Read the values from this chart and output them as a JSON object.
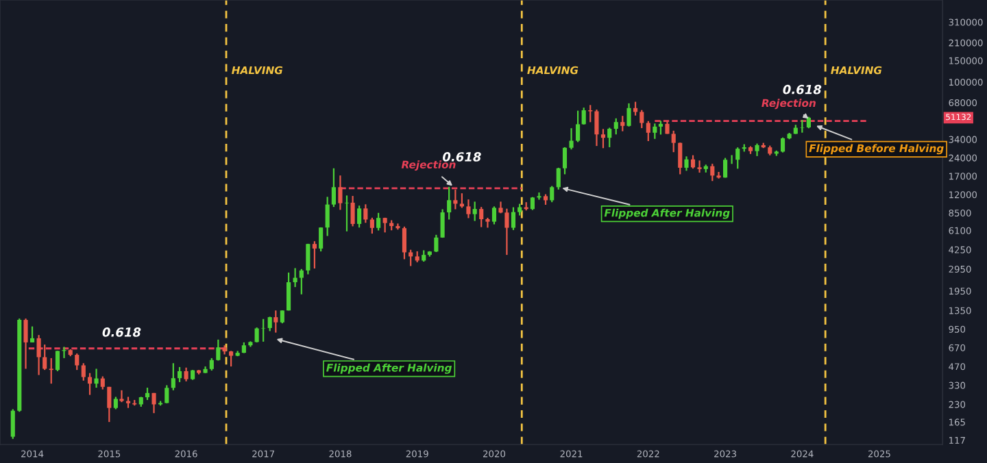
{
  "chart_data": {
    "type": "candlestick",
    "x": [
      "2013-10",
      "2013-11",
      "2013-12",
      "2014-01",
      "2014-02",
      "2014-03",
      "2014-04",
      "2014-05",
      "2014-06",
      "2014-07",
      "2014-08",
      "2014-09",
      "2014-10",
      "2014-11",
      "2014-12",
      "2015-01",
      "2015-02",
      "2015-03",
      "2015-04",
      "2015-05",
      "2015-06",
      "2015-07",
      "2015-08",
      "2015-09",
      "2015-10",
      "2015-11",
      "2015-12",
      "2016-01",
      "2016-02",
      "2016-03",
      "2016-04",
      "2016-05",
      "2016-06",
      "2016-07",
      "2016-08",
      "2016-09",
      "2016-10",
      "2016-11",
      "2016-12",
      "2017-01",
      "2017-02",
      "2017-03",
      "2017-04",
      "2017-05",
      "2017-06",
      "2017-07",
      "2017-08",
      "2017-09",
      "2017-10",
      "2017-11",
      "2017-12",
      "2018-01",
      "2018-02",
      "2018-03",
      "2018-04",
      "2018-05",
      "2018-06",
      "2018-07",
      "2018-08",
      "2018-09",
      "2018-10",
      "2018-11",
      "2018-12",
      "2019-01",
      "2019-02",
      "2019-03",
      "2019-04",
      "2019-05",
      "2019-06",
      "2019-07",
      "2019-08",
      "2019-09",
      "2019-10",
      "2019-11",
      "2019-12",
      "2020-01",
      "2020-02",
      "2020-03",
      "2020-04",
      "2020-05",
      "2020-06",
      "2020-07",
      "2020-08",
      "2020-09",
      "2020-10",
      "2020-11",
      "2020-12",
      "2021-01",
      "2021-02",
      "2021-03",
      "2021-04",
      "2021-05",
      "2021-06",
      "2021-07",
      "2021-08",
      "2021-09",
      "2021-10",
      "2021-11",
      "2021-12",
      "2022-01",
      "2022-02",
      "2022-03",
      "2022-04",
      "2022-05",
      "2022-06",
      "2022-07",
      "2022-08",
      "2022-09",
      "2022-10",
      "2022-11",
      "2022-12",
      "2023-01",
      "2023-02",
      "2023-03",
      "2023-04",
      "2023-05",
      "2023-06",
      "2023-07",
      "2023-08",
      "2023-09",
      "2023-10",
      "2023-11",
      "2023-12",
      "2024-01",
      "2024-02"
    ],
    "ohlc": [
      [
        125,
        210,
        120,
        204
      ],
      [
        204,
        1160,
        200,
        1130
      ],
      [
        1130,
        1160,
        450,
        740
      ],
      [
        740,
        1000,
        740,
        800
      ],
      [
        800,
        850,
        400,
        560
      ],
      [
        560,
        710,
        440,
        450
      ],
      [
        450,
        550,
        340,
        440
      ],
      [
        440,
        630,
        430,
        630
      ],
      [
        630,
        680,
        550,
        640
      ],
      [
        640,
        650,
        570,
        585
      ],
      [
        585,
        600,
        440,
        480
      ],
      [
        480,
        500,
        360,
        385
      ],
      [
        385,
        415,
        275,
        340
      ],
      [
        340,
        450,
        315,
        375
      ],
      [
        375,
        390,
        305,
        320
      ],
      [
        320,
        320,
        165,
        215
      ],
      [
        215,
        265,
        210,
        255
      ],
      [
        255,
        300,
        240,
        245
      ],
      [
        245,
        265,
        215,
        235
      ],
      [
        235,
        250,
        225,
        230
      ],
      [
        230,
        265,
        220,
        263
      ],
      [
        263,
        315,
        250,
        285
      ],
      [
        285,
        285,
        195,
        230
      ],
      [
        230,
        245,
        225,
        236
      ],
      [
        236,
        330,
        235,
        314
      ],
      [
        314,
        500,
        300,
        377
      ],
      [
        377,
        465,
        350,
        430
      ],
      [
        430,
        460,
        355,
        370
      ],
      [
        370,
        440,
        365,
        437
      ],
      [
        437,
        440,
        405,
        416
      ],
      [
        416,
        470,
        415,
        448
      ],
      [
        448,
        550,
        435,
        530
      ],
      [
        530,
        780,
        525,
        673
      ],
      [
        673,
        700,
        590,
        624
      ],
      [
        624,
        630,
        470,
        575
      ],
      [
        575,
        630,
        570,
        608
      ],
      [
        608,
        740,
        605,
        700
      ],
      [
        700,
        755,
        680,
        745
      ],
      [
        745,
        980,
        740,
        963
      ],
      [
        963,
        1150,
        750,
        970
      ],
      [
        970,
        1200,
        915,
        1190
      ],
      [
        1190,
        1350,
        890,
        1080
      ],
      [
        1080,
        1350,
        1060,
        1350
      ],
      [
        1350,
        2760,
        1350,
        2300
      ],
      [
        2300,
        3000,
        2100,
        2500
      ],
      [
        2500,
        2950,
        1830,
        2870
      ],
      [
        2870,
        4750,
        2670,
        4730
      ],
      [
        4730,
        4980,
        2980,
        4340
      ],
      [
        4340,
        6470,
        4110,
        6450
      ],
      [
        6450,
        11500,
        5500,
        9950
      ],
      [
        9950,
        19700,
        9500,
        13800
      ],
      [
        13800,
        17200,
        9000,
        10200
      ],
      [
        10200,
        11800,
        6000,
        10300
      ],
      [
        10300,
        11700,
        6600,
        6900
      ],
      [
        6900,
        9750,
        6450,
        9240
      ],
      [
        9240,
        9990,
        7050,
        7500
      ],
      [
        7500,
        7760,
        5750,
        6400
      ],
      [
        6400,
        8500,
        6100,
        7730
      ],
      [
        7730,
        7760,
        5880,
        7020
      ],
      [
        7020,
        7400,
        6120,
        6630
      ],
      [
        6630,
        6950,
        6200,
        6370
      ],
      [
        6370,
        6560,
        3550,
        4040
      ],
      [
        4040,
        4240,
        3120,
        3740
      ],
      [
        3740,
        4120,
        3350,
        3460
      ],
      [
        3460,
        4200,
        3390,
        3850
      ],
      [
        3850,
        4130,
        3730,
        4100
      ],
      [
        4100,
        5620,
        4060,
        5340
      ],
      [
        5340,
        9100,
        5320,
        8580
      ],
      [
        8580,
        13880,
        7500,
        10800
      ],
      [
        10800,
        13200,
        9100,
        10100
      ],
      [
        10100,
        12300,
        9350,
        9600
      ],
      [
        9600,
        10950,
        7700,
        8300
      ],
      [
        8300,
        10500,
        7300,
        9150
      ],
      [
        9150,
        9500,
        6500,
        7550
      ],
      [
        7550,
        7750,
        6430,
        7200
      ],
      [
        7200,
        9600,
        6850,
        9350
      ],
      [
        9350,
        10500,
        8450,
        8550
      ],
      [
        8550,
        9200,
        3850,
        6420
      ],
      [
        6420,
        9450,
        6150,
        8630
      ],
      [
        8630,
        10080,
        8100,
        9450
      ],
      [
        9450,
        10400,
        8900,
        9140
      ],
      [
        9140,
        11450,
        8970,
        11350
      ],
      [
        11350,
        12480,
        10900,
        11650
      ],
      [
        11650,
        12080,
        9900,
        10780
      ],
      [
        10780,
        14100,
        10400,
        13800
      ],
      [
        13800,
        19900,
        13200,
        19700
      ],
      [
        19700,
        29300,
        17600,
        28990
      ],
      [
        28990,
        41950,
        28100,
        33100
      ],
      [
        33100,
        58350,
        32300,
        45200
      ],
      [
        45200,
        61800,
        44950,
        58800
      ],
      [
        58800,
        64900,
        47000,
        57700
      ],
      [
        57700,
        59600,
        30000,
        37300
      ],
      [
        37300,
        41300,
        28800,
        35000
      ],
      [
        35000,
        42300,
        29300,
        41460
      ],
      [
        41460,
        50500,
        37300,
        47100
      ],
      [
        47100,
        52900,
        39600,
        43800
      ],
      [
        43800,
        67000,
        43300,
        61300
      ],
      [
        61300,
        69000,
        53250,
        57000
      ],
      [
        57000,
        59050,
        42000,
        46300
      ],
      [
        46300,
        47990,
        32900,
        38500
      ],
      [
        38500,
        45800,
        34300,
        43200
      ],
      [
        43200,
        48200,
        37200,
        45500
      ],
      [
        45500,
        47450,
        37700,
        37700
      ],
      [
        37700,
        40000,
        26700,
        31800
      ],
      [
        31800,
        31950,
        17600,
        19900
      ],
      [
        19900,
        24650,
        18800,
        23300
      ],
      [
        23300,
        25200,
        19600,
        20050
      ],
      [
        20050,
        22800,
        18150,
        19420
      ],
      [
        19420,
        21100,
        18200,
        20500
      ],
      [
        20500,
        21450,
        15500,
        17170
      ],
      [
        17170,
        18400,
        16250,
        16540
      ],
      [
        16540,
        23950,
        16500,
        23130
      ],
      [
        23130,
        25250,
        21400,
        23150
      ],
      [
        23150,
        29200,
        19550,
        28480
      ],
      [
        28480,
        31000,
        26950,
        29250
      ],
      [
        29250,
        29850,
        25800,
        27220
      ],
      [
        27220,
        31400,
        24800,
        30480
      ],
      [
        30480,
        31800,
        28850,
        29230
      ],
      [
        29230,
        30200,
        25150,
        25940
      ],
      [
        25940,
        27500,
        24900,
        26970
      ],
      [
        26970,
        35200,
        26550,
        34650
      ],
      [
        34650,
        38400,
        34100,
        37720
      ],
      [
        37720,
        44700,
        37600,
        42280
      ],
      [
        42280,
        49000,
        38550,
        42580
      ],
      [
        42580,
        52000,
        41900,
        51132
      ]
    ],
    "colors": [
      "#4cd137",
      "#4cd137",
      "#e8584a",
      "#4cd137",
      "#e8584a",
      "#e8584a",
      "#e8584a",
      "#4cd137",
      "#4cd137",
      "#e8584a",
      "#e8584a",
      "#e8584a",
      "#e8584a",
      "#4cd137",
      "#e8584a",
      "#e8584a",
      "#4cd137",
      "#e8584a",
      "#e8584a",
      "#e8584a",
      "#4cd137",
      "#4cd137",
      "#e8584a",
      "#4cd137",
      "#4cd137",
      "#4cd137",
      "#4cd137",
      "#e8584a",
      "#4cd137",
      "#e8584a",
      "#4cd137",
      "#4cd137",
      "#4cd137",
      "#e8584a",
      "#e8584a",
      "#4cd137",
      "#4cd137",
      "#4cd137",
      "#4cd137",
      "#4cd137",
      "#4cd137",
      "#e8584a",
      "#4cd137",
      "#4cd137",
      "#4cd137",
      "#4cd137",
      "#4cd137",
      "#e8584a",
      "#4cd137",
      "#4cd137",
      "#4cd137",
      "#e8584a",
      "#4cd137",
      "#e8584a",
      "#4cd137",
      "#e8584a",
      "#e8584a",
      "#4cd137",
      "#e8584a",
      "#e8584a",
      "#e8584a",
      "#e8584a",
      "#e8584a",
      "#e8584a",
      "#4cd137",
      "#4cd137",
      "#4cd137",
      "#4cd137",
      "#4cd137",
      "#e8584a",
      "#e8584a",
      "#e8584a",
      "#4cd137",
      "#e8584a",
      "#e8584a",
      "#4cd137",
      "#e8584a",
      "#e8584a",
      "#4cd137",
      "#4cd137",
      "#e8584a",
      "#4cd137",
      "#4cd137",
      "#e8584a",
      "#4cd137",
      "#4cd137",
      "#4cd137",
      "#4cd137",
      "#4cd137",
      "#4cd137",
      "#e8584a",
      "#e8584a",
      "#e8584a",
      "#4cd137",
      "#4cd137",
      "#e8584a",
      "#4cd137",
      "#e8584a",
      "#e8584a",
      "#e8584a",
      "#4cd137",
      "#4cd137",
      "#e8584a",
      "#e8584a",
      "#e8584a",
      "#4cd137",
      "#e8584a",
      "#e8584a",
      "#4cd137",
      "#e8584a",
      "#e8584a",
      "#4cd137",
      "#4cd137",
      "#4cd137",
      "#4cd137",
      "#e8584a",
      "#4cd137",
      "#e8584a",
      "#e8584a",
      "#4cd137",
      "#4cd137",
      "#4cd137",
      "#4cd137",
      "#4cd137",
      "#4cd137"
    ],
    "series": [
      {
        "type": "line",
        "x": [
          "2013-12-15",
          "2016-07-09"
        ],
        "values": [
          660,
          660
        ],
        "color": "#e84057",
        "line_style": "dashed"
      },
      {
        "type": "line",
        "x": [
          "2018-01-01",
          "2020-05-11"
        ],
        "values": [
          13500,
          13500
        ],
        "color": "#e84057",
        "line_style": "dashed"
      },
      {
        "type": "line",
        "x": [
          "2022-02-01",
          "2024-11-01"
        ],
        "values": [
          48000,
          48000
        ],
        "color": "#e84057",
        "line_style": "dashed"
      }
    ],
    "ref_lines": [
      {
        "axis": "x",
        "value": "2016-07-09",
        "label": "HALVING",
        "color": "#f5c542",
        "line_style": "dashed"
      },
      {
        "axis": "x",
        "value": "2020-05-11",
        "label": "HALVING",
        "color": "#f5c542",
        "line_style": "dashed"
      },
      {
        "axis": "x",
        "value": "2024-04-20",
        "label": "HALVING",
        "color": "#f5c542",
        "line_style": "dashed"
      }
    ],
    "annotations": [
      {
        "text": "0.618",
        "x": "2015-03-01",
        "y": 660
      },
      {
        "text": "0.618",
        "x": "2019-08-01",
        "y": 13500
      },
      {
        "text": "0.618",
        "x": "2024-01-01",
        "y": 48000
      },
      {
        "text": "Rejection",
        "x": "2019-07-01",
        "y": 13500
      },
      {
        "text": "Rejection",
        "x": "2024-02-15",
        "y": 48000
      },
      {
        "text": "Flipped After Halving",
        "x": "2017-02-15",
        "y": 800
      },
      {
        "text": "Flipped After Halving",
        "x": "2020-11-01",
        "y": 13800
      },
      {
        "text": "Flipped Before Halving",
        "x": "2024-02-20",
        "y": 45000
      },
      "51132"
    ],
    "xlim": [
      "2013-08-01",
      "2025-10-28"
    ],
    "xticks": [
      "2014",
      "2015",
      "2016",
      "2017",
      "2018",
      "2019",
      "2020",
      "2021",
      "2022",
      "2023",
      "2024",
      "2025"
    ],
    "log": "y",
    "ylim": [
      108,
      470000
    ],
    "yticks": [
      117,
      165,
      230,
      330,
      470,
      670,
      950,
      1350,
      1950,
      2950,
      4250,
      6100,
      8500,
      12000,
      17000,
      24000,
      34000,
      68000,
      100000,
      150000,
      210000,
      310000
    ],
    "grid": false
  }
}
